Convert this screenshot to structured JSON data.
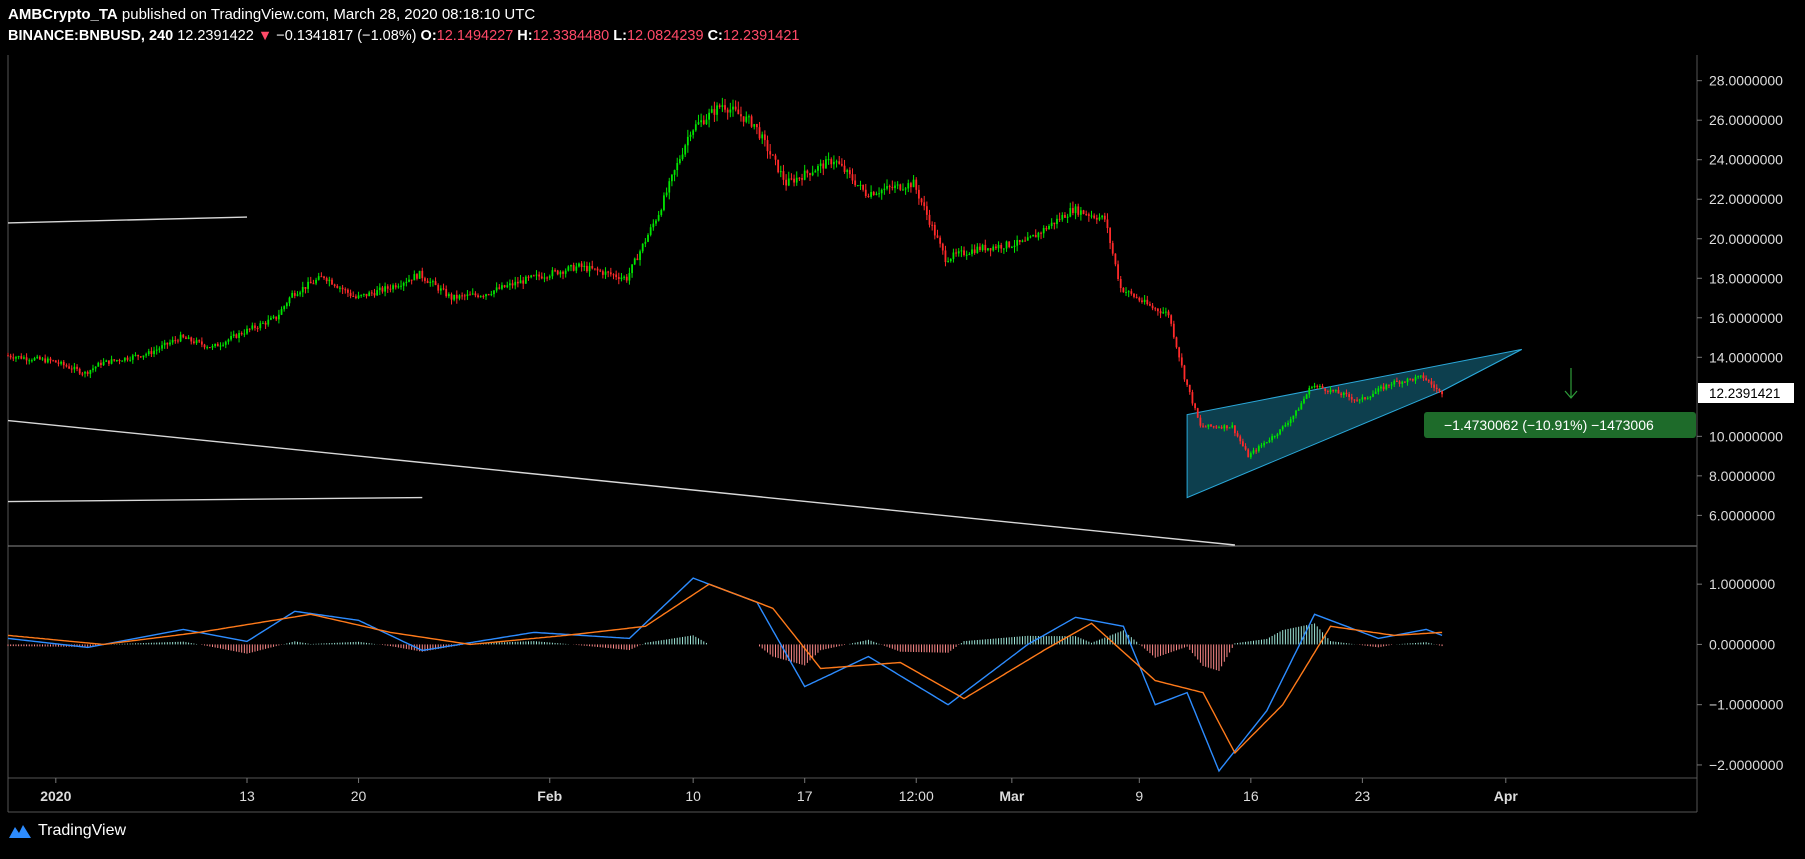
{
  "header": {
    "author": "AMBCrypto_TA",
    "published_text": "published on TradingView.com, March 28, 2020 08:18:10 UTC",
    "symbol": "BINANCE:BNBUSD, 240",
    "last": "12.2391422",
    "change": "−0.1341817 (−1.08%)",
    "o_label": "O:",
    "o": "12.1494227",
    "h_label": "H:",
    "h": "12.3384480",
    "l_label": "L:",
    "l": "12.0824239",
    "c_label": "C:",
    "c": "12.2391421"
  },
  "price_axis": {
    "ticks": [
      "28.0000000",
      "26.0000000",
      "24.0000000",
      "22.0000000",
      "20.0000000",
      "18.0000000",
      "16.0000000",
      "14.0000000",
      "10.0000000",
      "8.0000000",
      "6.0000000"
    ],
    "current_price_label": "12.2391421"
  },
  "measure_label": "−1.4730062 (−10.91%) −1473006",
  "macd_axis": {
    "ticks": [
      "1.0000000",
      "0.0000000",
      "−1.0000000",
      "−2.0000000"
    ]
  },
  "time_axis": {
    "ticks": [
      "2020",
      "13",
      "20",
      "Feb",
      "10",
      "17",
      "12:00",
      "Mar",
      "9",
      "16",
      "23",
      "Apr"
    ]
  },
  "footer": {
    "brand": "TradingView"
  },
  "colors": {
    "up": "#00e600",
    "down": "#ff2a2a",
    "macd": "#2d8cff",
    "signal": "#ff7a1a",
    "wedge_fill": "#0f4a5c",
    "wedge_line": "#2aa7d8"
  },
  "chart_data": {
    "type": "candlestick",
    "symbol": "BINANCE:BNBUSD",
    "interval": "240",
    "y_range": [
      4.5,
      29.3
    ],
    "macd_range": [
      -2.2,
      1.6
    ],
    "x_range": [
      "2019-12-29",
      "2020-04-13"
    ],
    "price_path": [
      [
        "2019-12-29",
        14.1
      ],
      [
        "2020-01-01",
        13.8
      ],
      [
        "2020-01-03",
        13.2
      ],
      [
        "2020-01-04",
        13.7
      ],
      [
        "2020-01-07",
        14.2
      ],
      [
        "2020-01-09",
        15.0
      ],
      [
        "2020-01-11",
        14.5
      ],
      [
        "2020-01-13",
        15.3
      ],
      [
        "2020-01-15",
        16.0
      ],
      [
        "2020-01-16",
        17.2
      ],
      [
        "2020-01-18",
        18.1
      ],
      [
        "2020-01-20",
        17.0
      ],
      [
        "2020-01-22",
        17.5
      ],
      [
        "2020-01-24",
        18.2
      ],
      [
        "2020-01-26",
        17.0
      ],
      [
        "2020-01-28",
        17.2
      ],
      [
        "2020-01-31",
        18.0
      ],
      [
        "2020-02-03",
        18.6
      ],
      [
        "2020-02-06",
        18.0
      ],
      [
        "2020-02-08",
        21.3
      ],
      [
        "2020-02-10",
        25.5
      ],
      [
        "2020-02-12",
        26.8
      ],
      [
        "2020-02-14",
        25.8
      ],
      [
        "2020-02-16",
        22.8
      ],
      [
        "2020-02-19",
        24.0
      ],
      [
        "2020-02-21",
        22.3
      ],
      [
        "2020-02-24",
        22.8
      ],
      [
        "2020-02-26",
        19.0
      ],
      [
        "2020-02-28",
        19.5
      ],
      [
        "2020-03-02",
        19.8
      ],
      [
        "2020-03-05",
        21.5
      ],
      [
        "2020-03-07",
        21.0
      ],
      [
        "2020-03-08",
        17.5
      ],
      [
        "2020-03-10",
        16.5
      ],
      [
        "2020-03-11",
        16.2
      ],
      [
        "2020-03-12",
        13.0
      ],
      [
        "2020-03-13",
        10.5
      ],
      [
        "2020-03-15",
        10.5
      ],
      [
        "2020-03-16",
        9.0
      ],
      [
        "2020-03-18",
        10.3
      ],
      [
        "2020-03-19",
        11.2
      ],
      [
        "2020-03-20",
        12.6
      ],
      [
        "2020-03-22",
        12.1
      ],
      [
        "2020-03-23",
        11.8
      ],
      [
        "2020-03-25",
        12.7
      ],
      [
        "2020-03-27",
        13.0
      ],
      [
        "2020-03-28",
        12.24
      ]
    ],
    "macd": [
      [
        "2019-12-29",
        0.1
      ],
      [
        "2020-01-03",
        -0.05
      ],
      [
        "2020-01-09",
        0.25
      ],
      [
        "2020-01-13",
        0.05
      ],
      [
        "2020-01-16",
        0.55
      ],
      [
        "2020-01-20",
        0.4
      ],
      [
        "2020-01-24",
        -0.1
      ],
      [
        "2020-01-31",
        0.2
      ],
      [
        "2020-02-06",
        0.1
      ],
      [
        "2020-02-10",
        1.1
      ],
      [
        "2020-02-14",
        0.7
      ],
      [
        "2020-02-17",
        -0.7
      ],
      [
        "2020-02-21",
        -0.2
      ],
      [
        "2020-02-26",
        -1.0
      ],
      [
        "2020-03-02",
        0.0
      ],
      [
        "2020-03-05",
        0.45
      ],
      [
        "2020-03-08",
        0.3
      ],
      [
        "2020-03-10",
        -1.0
      ],
      [
        "2020-03-12",
        -0.8
      ],
      [
        "2020-03-14",
        -2.1
      ],
      [
        "2020-03-17",
        -1.1
      ],
      [
        "2020-03-20",
        0.5
      ],
      [
        "2020-03-24",
        0.1
      ],
      [
        "2020-03-27",
        0.25
      ],
      [
        "2020-03-28",
        0.15
      ]
    ],
    "signal": [
      [
        "2019-12-29",
        0.15
      ],
      [
        "2020-01-04",
        0.0
      ],
      [
        "2020-01-10",
        0.2
      ],
      [
        "2020-01-17",
        0.5
      ],
      [
        "2020-01-22",
        0.2
      ],
      [
        "2020-01-27",
        0.0
      ],
      [
        "2020-02-02",
        0.15
      ],
      [
        "2020-02-07",
        0.3
      ],
      [
        "2020-02-11",
        1.0
      ],
      [
        "2020-02-15",
        0.6
      ],
      [
        "2020-02-18",
        -0.4
      ],
      [
        "2020-02-23",
        -0.3
      ],
      [
        "2020-02-27",
        -0.9
      ],
      [
        "2020-03-03",
        -0.1
      ],
      [
        "2020-03-06",
        0.35
      ],
      [
        "2020-03-10",
        -0.6
      ],
      [
        "2020-03-13",
        -0.8
      ],
      [
        "2020-03-15",
        -1.8
      ],
      [
        "2020-03-18",
        -1.0
      ],
      [
        "2020-03-21",
        0.3
      ],
      [
        "2020-03-25",
        0.15
      ],
      [
        "2020-03-28",
        0.2
      ]
    ],
    "rising_wedge": {
      "upper": [
        [
          "2020-03-12",
          11.1
        ],
        [
          "2020-04-02",
          14.4
        ]
      ],
      "lower": [
        [
          "2020-03-12",
          6.9
        ],
        [
          "2020-03-28",
          12.3
        ]
      ]
    },
    "trendlines": [
      [
        [
          "2019-12-29",
          20.8
        ],
        [
          "2020-01-13",
          21.1
        ]
      ],
      [
        [
          "2019-12-29",
          10.8
        ],
        [
          "2020-03-15",
          4.5
        ]
      ],
      [
        [
          "2019-12-29",
          6.7
        ],
        [
          "2020-01-24",
          6.9
        ]
      ]
    ]
  }
}
